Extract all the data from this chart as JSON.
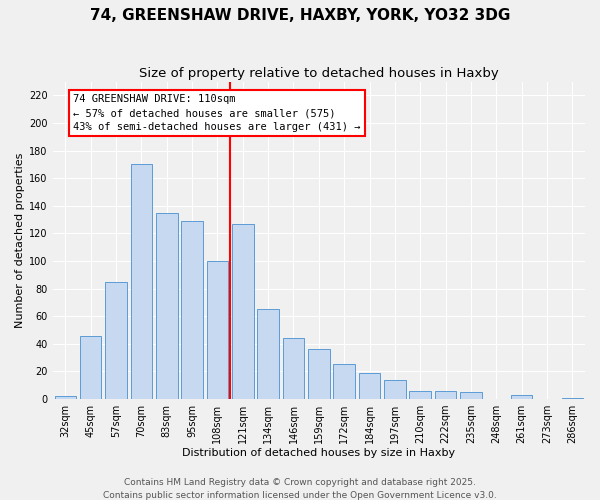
{
  "title": "74, GREENSHAW DRIVE, HAXBY, YORK, YO32 3DG",
  "subtitle": "Size of property relative to detached houses in Haxby",
  "xlabel": "Distribution of detached houses by size in Haxby",
  "ylabel": "Number of detached properties",
  "categories": [
    "32sqm",
    "45sqm",
    "57sqm",
    "70sqm",
    "83sqm",
    "95sqm",
    "108sqm",
    "121sqm",
    "134sqm",
    "146sqm",
    "159sqm",
    "172sqm",
    "184sqm",
    "197sqm",
    "210sqm",
    "222sqm",
    "235sqm",
    "248sqm",
    "261sqm",
    "273sqm",
    "286sqm"
  ],
  "values": [
    2,
    46,
    85,
    170,
    135,
    129,
    100,
    127,
    65,
    44,
    36,
    25,
    19,
    14,
    6,
    6,
    5,
    0,
    3,
    0,
    1
  ],
  "bar_color": "#c6d9f1",
  "bar_edge_color": "#5b9bd5",
  "vline_x": 6.5,
  "vline_color": "red",
  "annotation_title": "74 GREENSHAW DRIVE: 110sqm",
  "annotation_line1": "← 57% of detached houses are smaller (575)",
  "annotation_line2": "43% of semi-detached houses are larger (431) →",
  "annotation_box_color": "white",
  "annotation_box_edge": "red",
  "ylim": [
    0,
    230
  ],
  "yticks": [
    0,
    20,
    40,
    60,
    80,
    100,
    120,
    140,
    160,
    180,
    200,
    220
  ],
  "footer1": "Contains HM Land Registry data © Crown copyright and database right 2025.",
  "footer2": "Contains public sector information licensed under the Open Government Licence v3.0.",
  "background_color": "#f0f0f0",
  "grid_color": "white",
  "title_fontsize": 11,
  "subtitle_fontsize": 9.5,
  "axis_label_fontsize": 8,
  "tick_fontsize": 7,
  "annotation_fontsize": 7.5,
  "footer_fontsize": 6.5
}
